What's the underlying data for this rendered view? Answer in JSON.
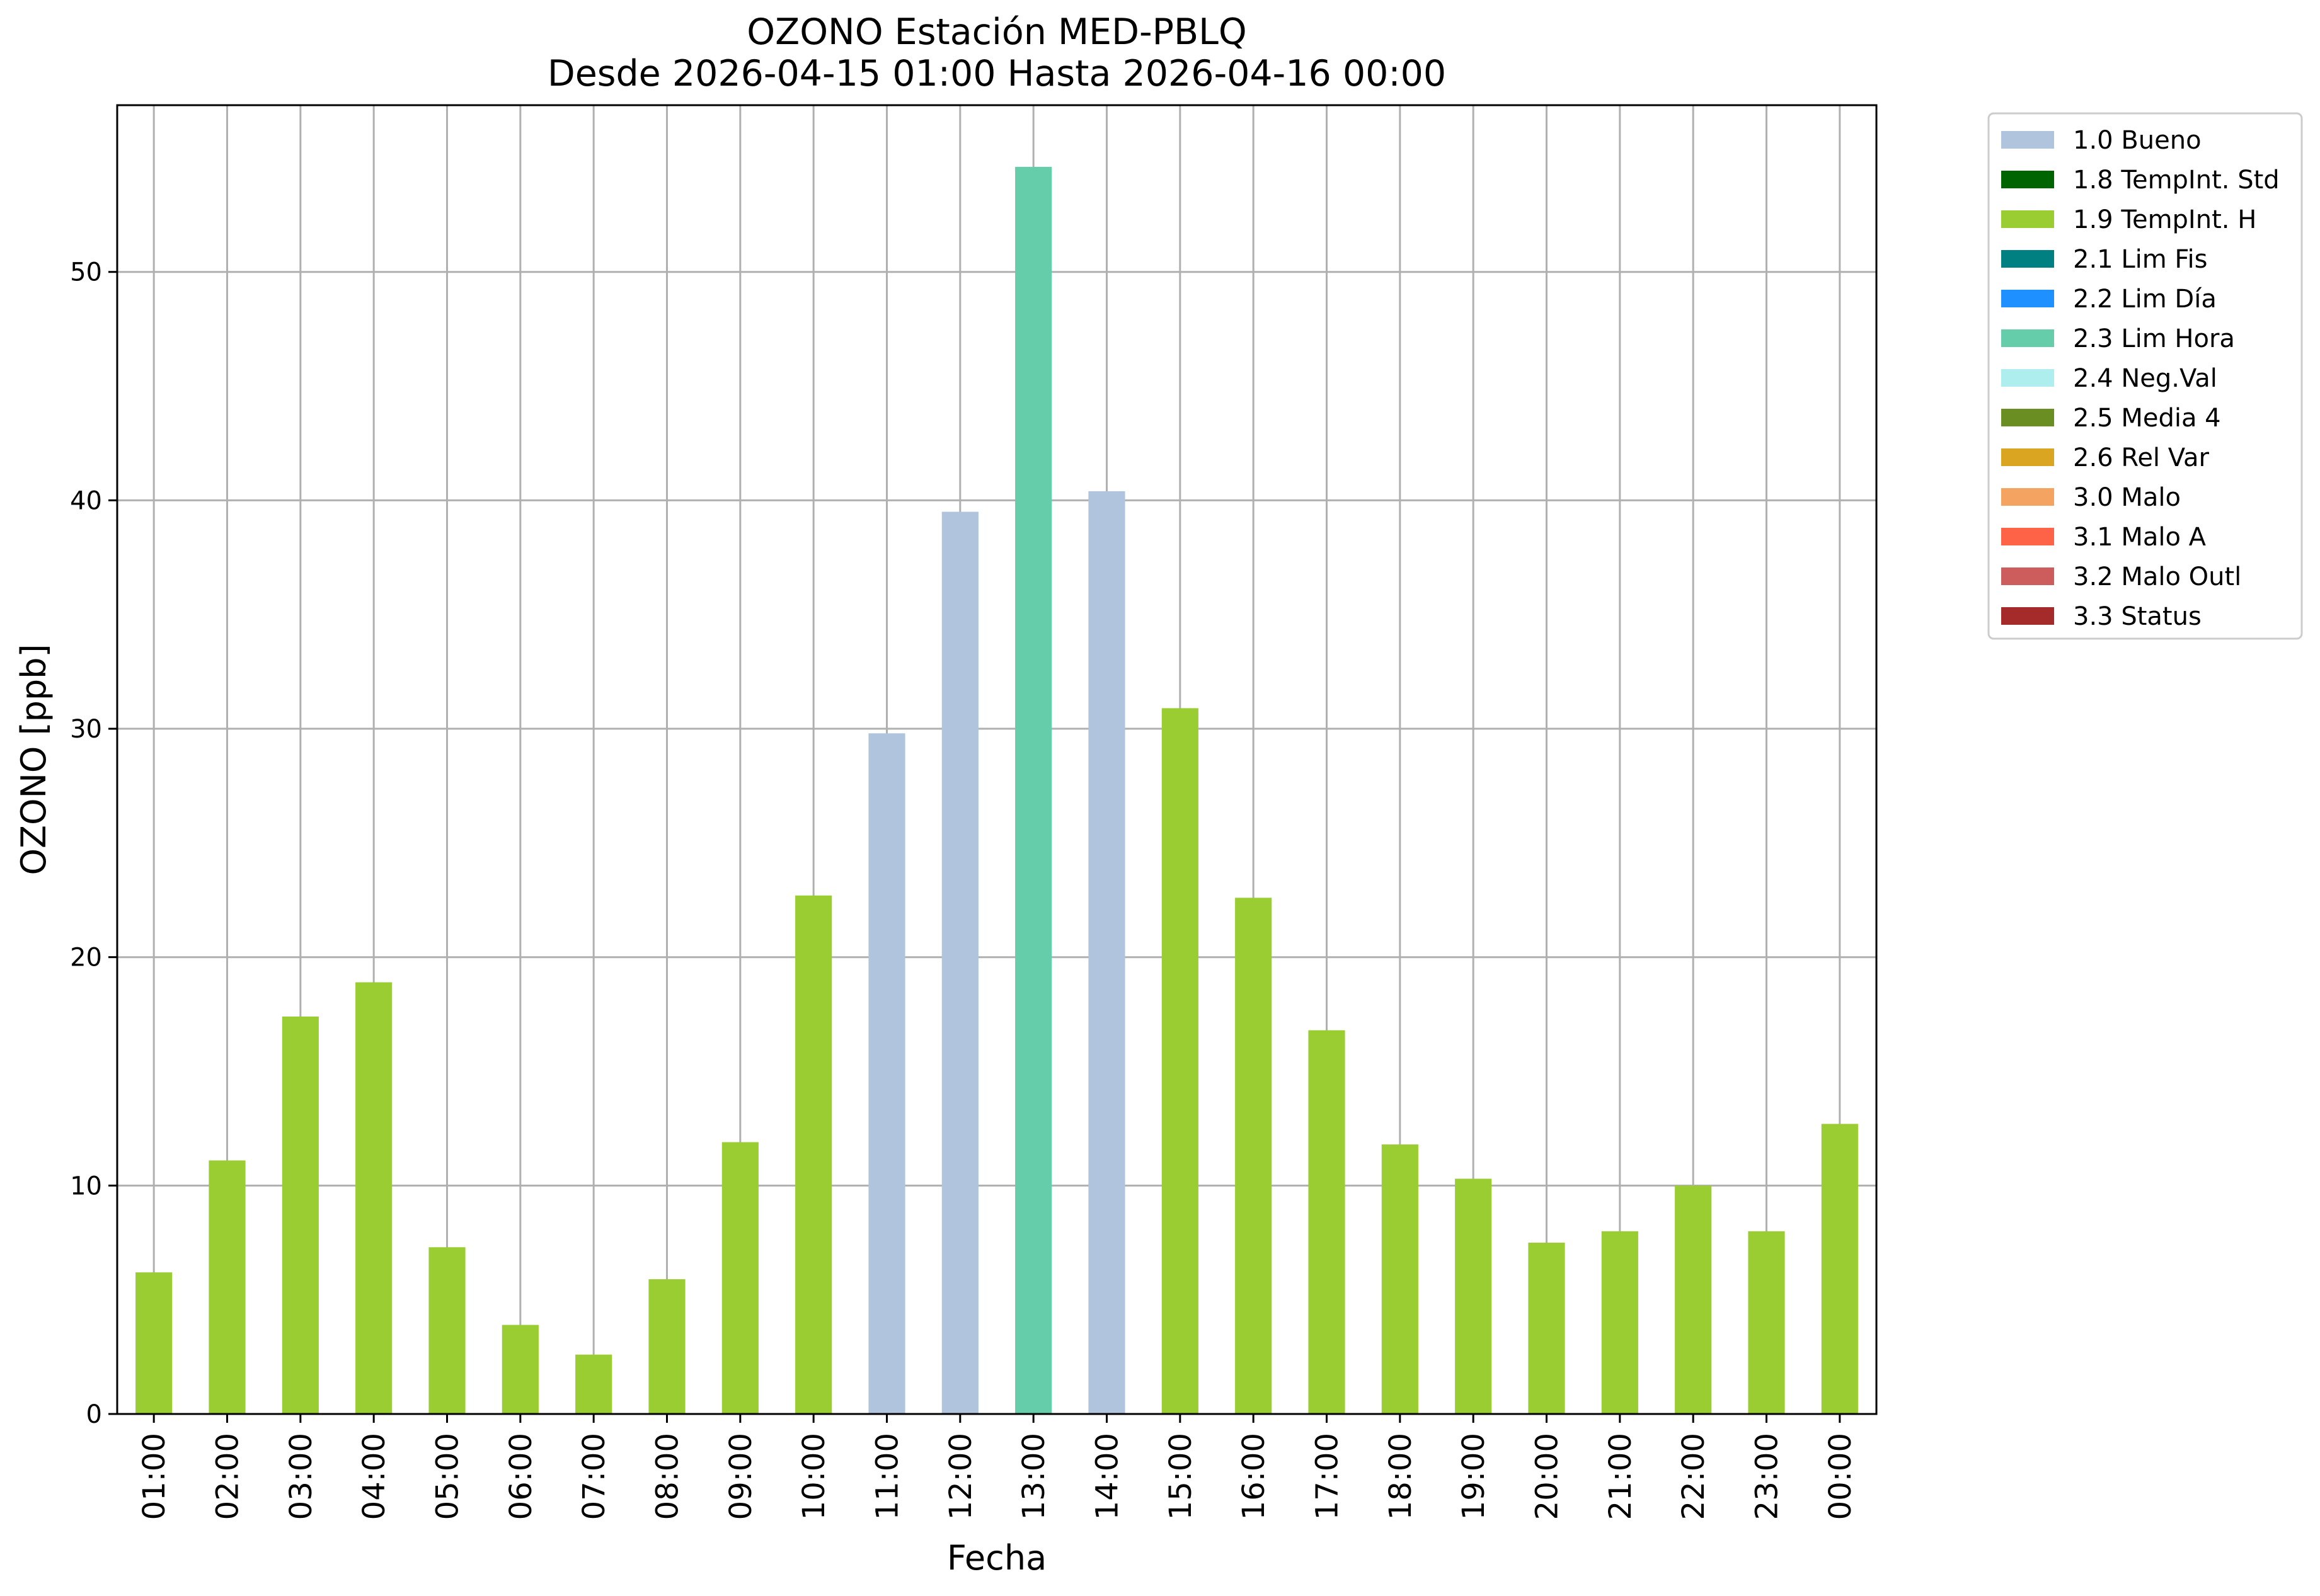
{
  "chart_data": {
    "type": "bar",
    "title": "OZONO Estación MED-PBLQ",
    "subtitle": "Desde 2026-04-15 01:00 Hasta 2026-04-16 00:00",
    "xlabel": "Fecha",
    "ylabel": "OZONO [ppb]",
    "ylim": [
      0,
      57.3
    ],
    "yticks": [
      0,
      10,
      20,
      30,
      40,
      50
    ],
    "grid": true,
    "legend_position": "outside-right",
    "categories": [
      "01:00",
      "02:00",
      "03:00",
      "04:00",
      "05:00",
      "06:00",
      "07:00",
      "08:00",
      "09:00",
      "10:00",
      "11:00",
      "12:00",
      "13:00",
      "14:00",
      "15:00",
      "16:00",
      "17:00",
      "18:00",
      "19:00",
      "20:00",
      "21:00",
      "22:00",
      "23:00",
      "00:00"
    ],
    "values": [
      6.2,
      11.1,
      17.4,
      18.9,
      7.3,
      3.9,
      2.6,
      5.9,
      11.9,
      22.7,
      29.8,
      39.5,
      54.6,
      40.4,
      30.9,
      22.6,
      16.8,
      11.8,
      10.3,
      7.5,
      8.0,
      10.0,
      8.0,
      12.7
    ],
    "flags": [
      "1.9",
      "1.9",
      "1.9",
      "1.9",
      "1.9",
      "1.9",
      "1.9",
      "1.9",
      "1.9",
      "1.9",
      "1.0",
      "1.0",
      "2.3",
      "1.0",
      "1.9",
      "1.9",
      "1.9",
      "1.9",
      "1.9",
      "1.9",
      "1.9",
      "1.9",
      "1.9",
      "1.9"
    ],
    "legend": [
      {
        "code": "1.0",
        "label": "1.0 Bueno",
        "color": "#b0c4de"
      },
      {
        "code": "1.8",
        "label": "1.8 TempInt. Std",
        "color": "#006400"
      },
      {
        "code": "1.9",
        "label": "1.9 TempInt. H",
        "color": "#9acd32"
      },
      {
        "code": "2.1",
        "label": "2.1 Lim Fis",
        "color": "#008080"
      },
      {
        "code": "2.2",
        "label": "2.2 Lim Día",
        "color": "#1e90ff"
      },
      {
        "code": "2.3",
        "label": "2.3 Lim Hora",
        "color": "#66cdaa"
      },
      {
        "code": "2.4",
        "label": "2.4 Neg.Val",
        "color": "#afeeee"
      },
      {
        "code": "2.5",
        "label": "2.5 Media 4",
        "color": "#6b8e23"
      },
      {
        "code": "2.6",
        "label": "2.6 Rel Var",
        "color": "#daa520"
      },
      {
        "code": "3.0",
        "label": "3.0 Malo",
        "color": "#f4a460"
      },
      {
        "code": "3.1",
        "label": "3.1 Malo A",
        "color": "#ff6347"
      },
      {
        "code": "3.2",
        "label": "3.2 Malo Outl",
        "color": "#cd5c5c"
      },
      {
        "code": "3.3",
        "label": "3.3 Status",
        "color": "#a52a2a"
      }
    ]
  }
}
